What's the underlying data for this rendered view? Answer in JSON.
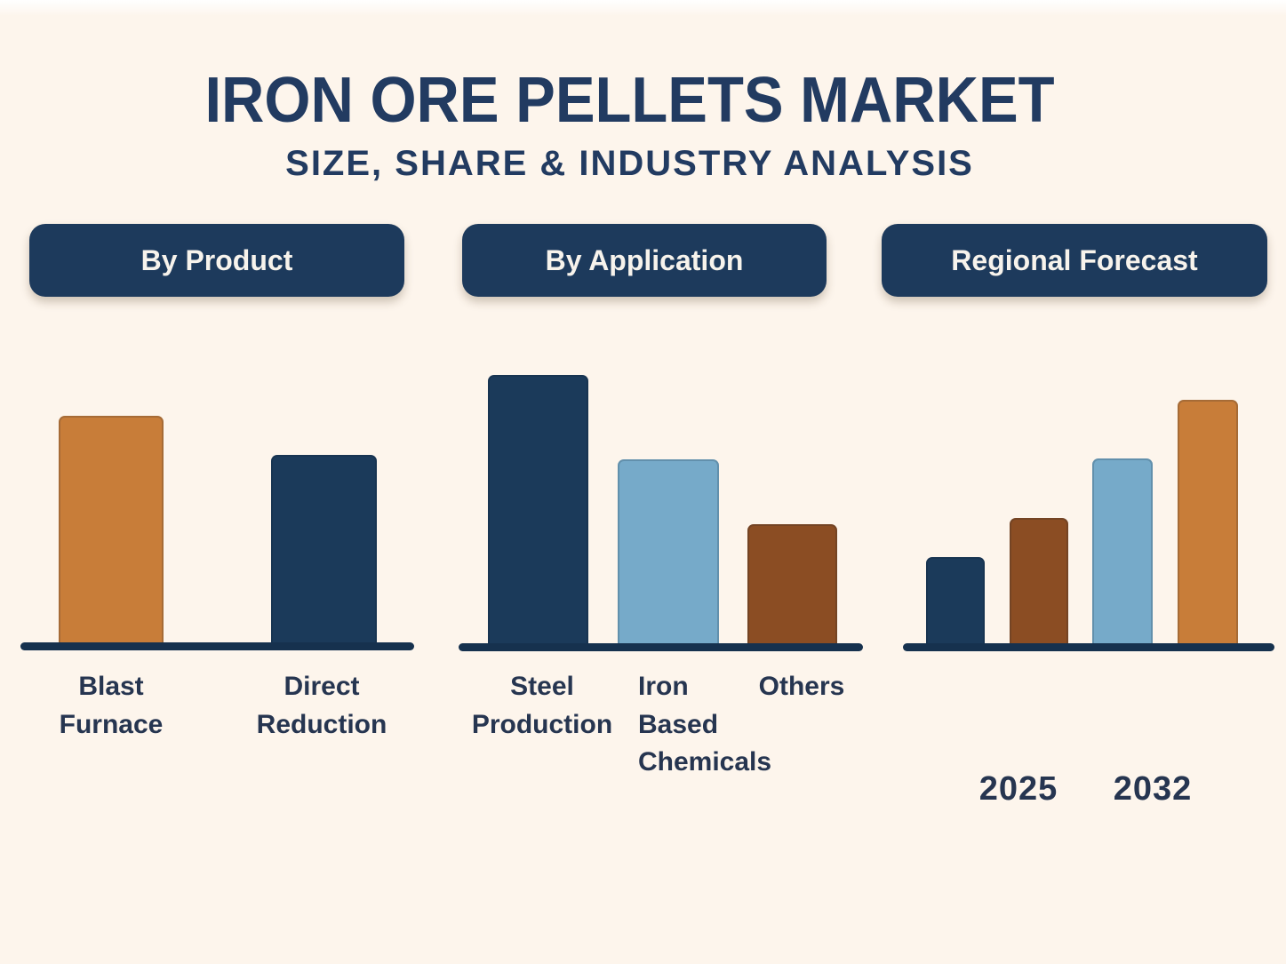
{
  "header": {
    "title": "IRON ORE PELLETS MARKET",
    "subtitle": "SIZE, SHARE & INDUSTRY ANALYSIS"
  },
  "sections": [
    {
      "id": "by-product",
      "pill_label": "By Product"
    },
    {
      "id": "by-application",
      "pill_label": "By Application"
    },
    {
      "id": "regional-forecast",
      "pill_label": "Regional Forecast"
    }
  ],
  "colors": {
    "background": "#fdf5ec",
    "navy": "#1b3a5a",
    "orange": "#c87d39",
    "light_blue": "#76aac9",
    "brown": "#8b4d23",
    "pill_background": "#1d3a5c",
    "axis": "#16314e",
    "text_navy": "#263550",
    "title_navy": "#223b61"
  },
  "chart_data": [
    {
      "type": "bar",
      "title": "By Product",
      "categories": [
        "Blast Furnace",
        "Direct Reduction"
      ],
      "category_lines": [
        [
          "Blast",
          "Furnace"
        ],
        [
          "Direct",
          "Reduction"
        ]
      ],
      "values": [
        100,
        83
      ],
      "colors": [
        "orange",
        "navy"
      ],
      "ylabel": "relative market size (max = 100, no axis values shown)",
      "grid": false,
      "legend": false
    },
    {
      "type": "bar",
      "title": "By Application",
      "categories": [
        "Steel Production",
        "Iron Based Chemicals",
        "Others"
      ],
      "category_lines": [
        [
          "Steel",
          "Production"
        ],
        [
          "Iron",
          "Based",
          "Chemicals"
        ],
        [
          "Others"
        ]
      ],
      "values": [
        100,
        69,
        45
      ],
      "colors": [
        "navy",
        "light_blue",
        "brown"
      ],
      "ylabel": "relative market size (max = 100, no axis values shown)",
      "grid": false,
      "legend": false
    },
    {
      "type": "bar",
      "title": "Regional Forecast",
      "x_labels": [
        "2025",
        "2032"
      ],
      "categories": [
        "bar-1",
        "bar-2",
        "bar-3",
        "bar-4"
      ],
      "values": [
        36,
        52,
        76,
        100
      ],
      "colors": [
        "navy",
        "brown",
        "light_blue",
        "orange"
      ],
      "ylabel": "relative market size ascending from 2025 to 2032 (max = 100)",
      "grid": false,
      "legend": false
    }
  ]
}
